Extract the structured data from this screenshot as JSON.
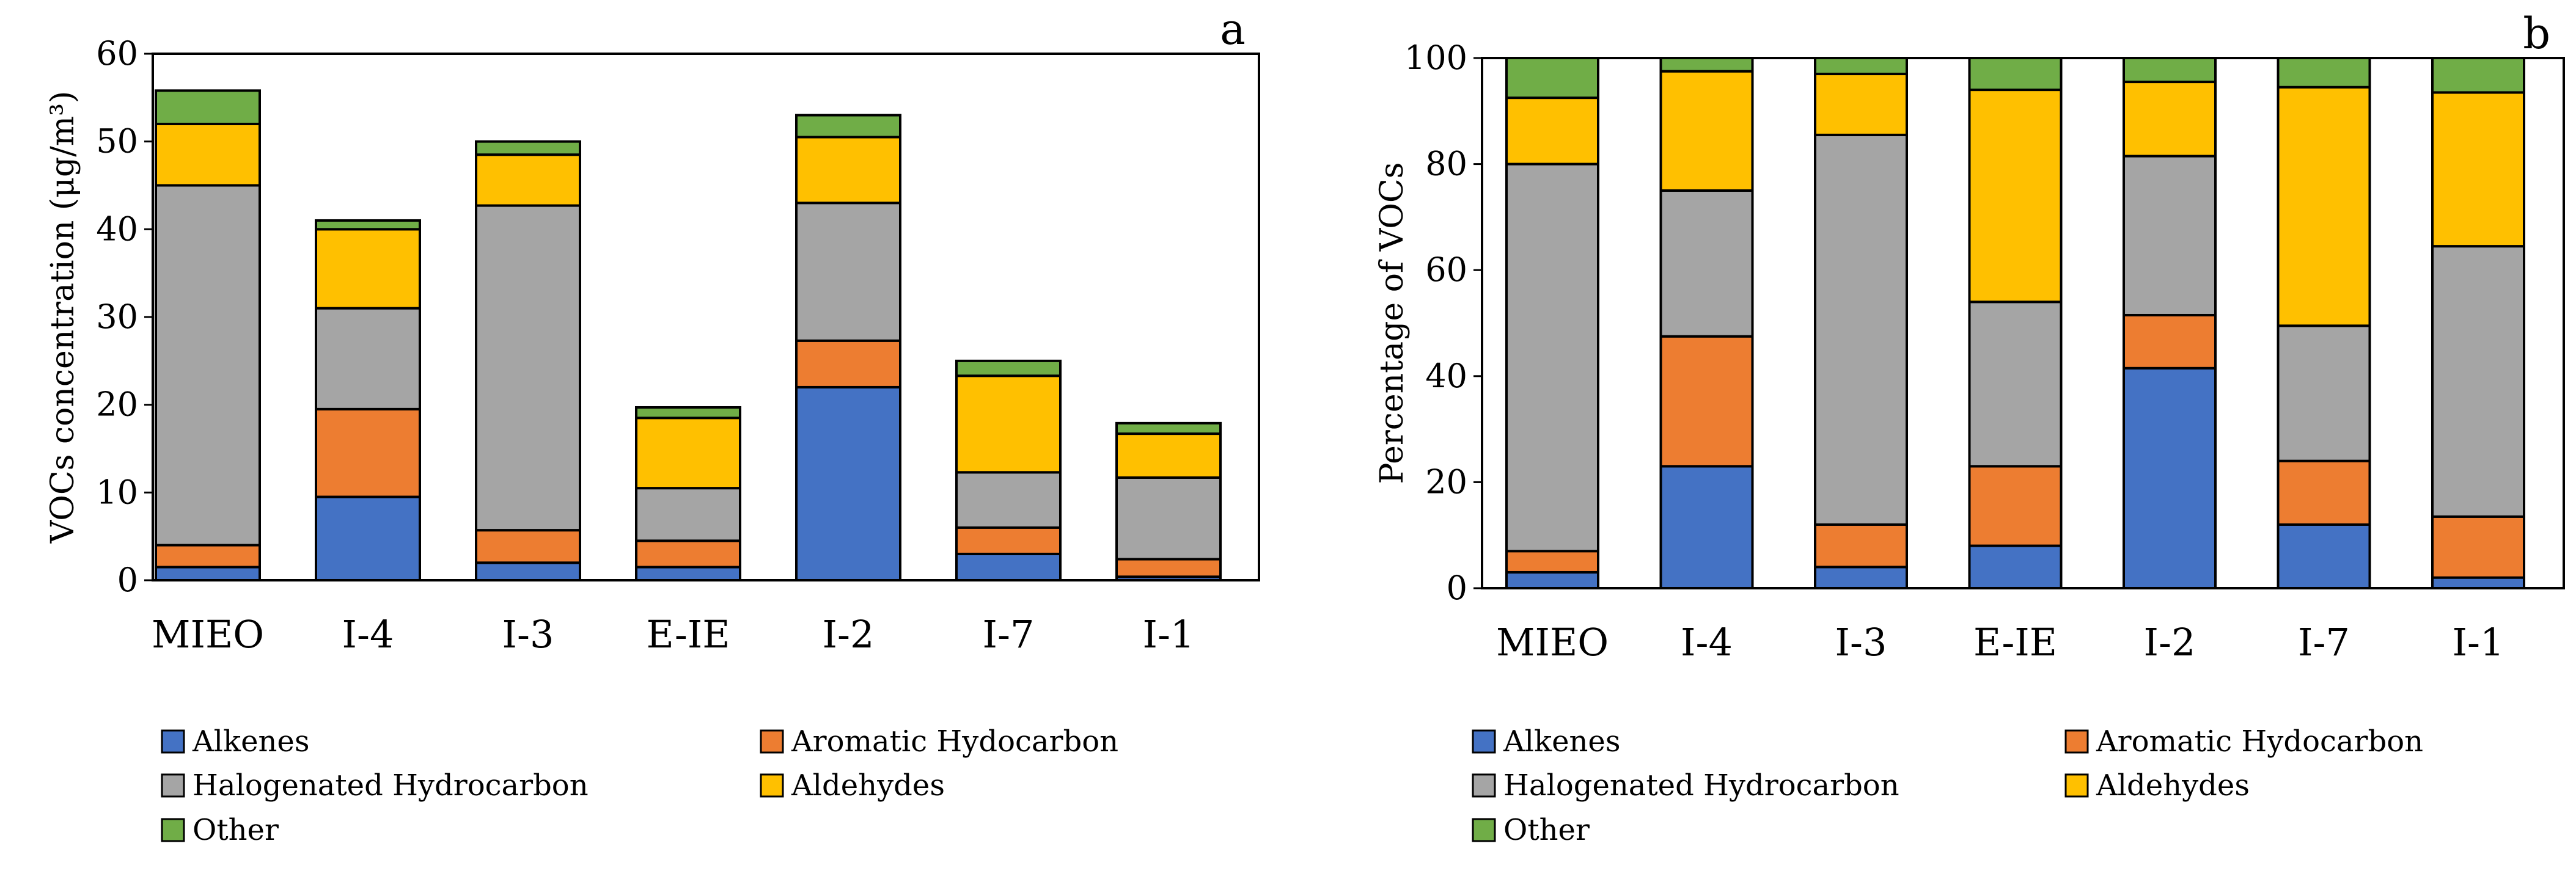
{
  "chart_data": [
    {
      "type": "bar",
      "stacked": true,
      "panel_label": "a",
      "ylabel": "VOCs concentration (μg/m³)",
      "ylim": [
        0,
        60
      ],
      "yticks": [
        0,
        10,
        20,
        30,
        40,
        50,
        60
      ],
      "grid": false,
      "legend_position": "bottom",
      "categories": [
        "MIEO",
        "I-4",
        "I-3",
        "E-IE",
        "I-2",
        "I-7",
        "I-1"
      ],
      "series": [
        {
          "name": "Alkenes",
          "values": [
            1.5,
            9.5,
            2.0,
            1.5,
            22.0,
            3.0,
            0.4
          ]
        },
        {
          "name": "Aromatic Hydocarbon",
          "values": [
            2.5,
            10.0,
            3.7,
            3.0,
            5.3,
            3.0,
            2.0
          ]
        },
        {
          "name": "Halogenated Hydrocarbon",
          "values": [
            41.0,
            11.5,
            37.0,
            6.0,
            15.7,
            6.3,
            9.3
          ]
        },
        {
          "name": "Aldehydes",
          "values": [
            7.0,
            9.0,
            5.8,
            8.0,
            7.5,
            11.0,
            5.0
          ]
        },
        {
          "name": "Other",
          "values": [
            3.8,
            1.0,
            1.5,
            1.2,
            2.5,
            1.7,
            1.2
          ]
        }
      ]
    },
    {
      "type": "bar",
      "stacked": true,
      "panel_label": "b",
      "ylabel": "Percentage of VOCs",
      "ylim": [
        0,
        100
      ],
      "yticks": [
        0,
        20,
        40,
        60,
        80,
        100
      ],
      "grid": false,
      "legend_position": "bottom",
      "categories": [
        "MIEO",
        "I-4",
        "I-3",
        "E-IE",
        "I-2",
        "I-7",
        "I-1"
      ],
      "series": [
        {
          "name": "Alkenes",
          "values": [
            3.0,
            23.0,
            4.0,
            8.0,
            41.5,
            12.0,
            2.0
          ]
        },
        {
          "name": "Aromatic Hydocarbon",
          "values": [
            4.0,
            24.5,
            8.0,
            15.0,
            10.0,
            12.0,
            11.5
          ]
        },
        {
          "name": "Halogenated Hydrocarbon",
          "values": [
            73.0,
            27.5,
            73.5,
            31.0,
            30.0,
            25.5,
            51.0
          ]
        },
        {
          "name": "Aldehydes",
          "values": [
            12.5,
            22.5,
            11.5,
            40.0,
            14.0,
            45.0,
            29.0
          ]
        },
        {
          "name": "Other",
          "values": [
            7.5,
            2.5,
            3.0,
            6.0,
            4.5,
            5.5,
            6.5
          ]
        }
      ]
    }
  ],
  "colors": {
    "Alkenes": "#4472C4",
    "Aromatic Hydocarbon": "#ED7D31",
    "Halogenated Hydrocarbon": "#A5A5A5",
    "Aldehydes": "#FFC000",
    "Other": "#70AD47",
    "outline": "#000000"
  }
}
